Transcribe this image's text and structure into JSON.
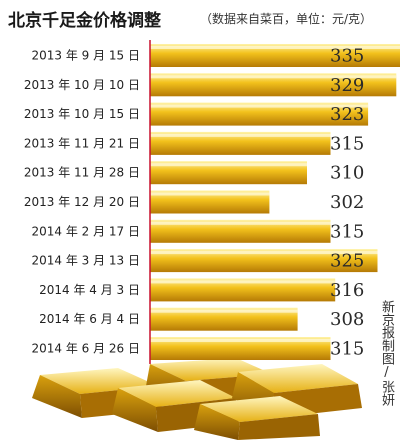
{
  "header": {
    "title": "北京千足金价格调整",
    "subtitle": "（数据来自菜百，单位：元/克）"
  },
  "credit": "新京报制图/张妍",
  "colors": {
    "bar_light": "#fff3a8",
    "bar_mid": "#f3c21c",
    "bar_dark": "#b57a05",
    "axis": "#c8102e"
  },
  "chart_data": {
    "type": "bar",
    "orientation": "horizontal",
    "title": "北京千足金价格调整",
    "subtitle": "（数据来自菜百，单位：元/克）",
    "unit": "元/克",
    "categories": [
      "2013 年 9 月 15 日",
      "2013 年 10 月 10 日",
      "2013 年 10 月 15 日",
      "2013 年 11 月 21 日",
      "2013 年 11 月 28 日",
      "2013 年 12 月 20 日",
      "2014 年 2 月 17 日",
      "2014 年 3 月 13 日",
      "2014 年 4 月 3 日",
      "2014 年 6 月 4 日",
      "2014 年 6 月 26 日"
    ],
    "values": [
      335,
      329,
      323,
      315,
      310,
      302,
      315,
      325,
      316,
      308,
      315
    ],
    "value_labels": [
      "335",
      "329",
      "323",
      "315",
      "310",
      "302",
      "315",
      "325",
      "316",
      "308",
      "315"
    ],
    "grid": false,
    "legend": "none"
  }
}
